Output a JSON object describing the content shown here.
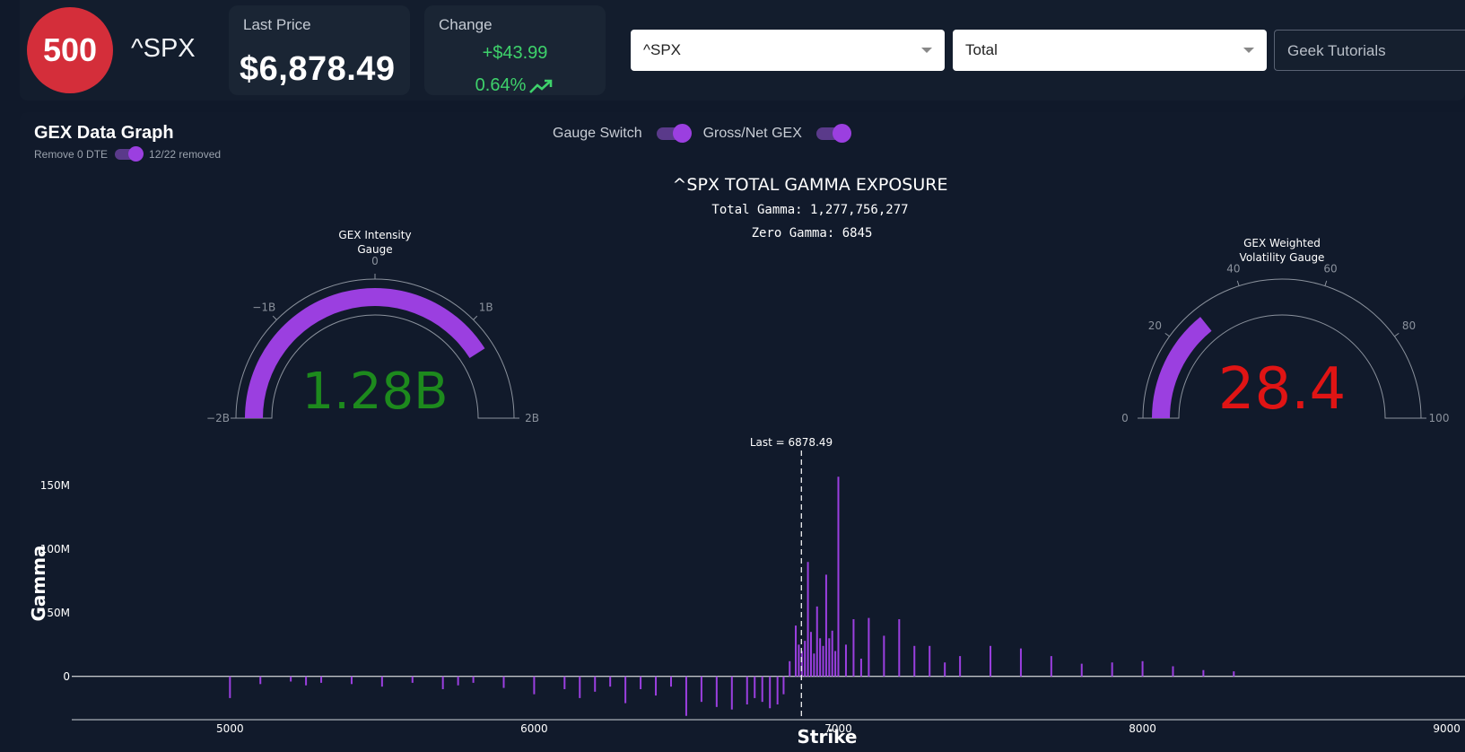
{
  "header": {
    "badge": "500",
    "ticker": "^SPX",
    "last_price_label": "Last Price",
    "last_price_value": "$6,878.49",
    "change_label": "Change",
    "change_amount": "+$43.99",
    "change_percent": "0.64%",
    "trend_icon": "trending-up-icon",
    "select_symbol": "^SPX",
    "select_mode": "Total",
    "tutorials": "Geek Tutorials",
    "accent_green": "#3ed26b",
    "badge_color": "#d42e3a"
  },
  "panel": {
    "title": "GEX Data Graph",
    "remove_dte_label": "Remove 0 DTE",
    "removed_text": "12/22 removed",
    "gauge_switch_label": "Gauge Switch",
    "gross_net_label": "Gross/Net GEX",
    "toggle_color": "#9b3fe0"
  },
  "chart_data": {
    "type": "bar",
    "title": "^SPX TOTAL GAMMA EXPOSURE",
    "subtitle_total": "Total Gamma: 1,277,756,277",
    "subtitle_zero": "Zero Gamma: 6845",
    "xlabel": "Strike",
    "ylabel": "Gamma",
    "xlim": [
      4480,
      9060
    ],
    "ylim": [
      -34000000,
      160000000
    ],
    "x_ticks": [
      5000,
      6000,
      7000,
      8000,
      9000
    ],
    "x_tick_labels": [
      "5000",
      "6000",
      "7000",
      "8000",
      "9000"
    ],
    "y_ticks": [
      0,
      50000000,
      100000000,
      150000000
    ],
    "y_tick_labels": [
      "0",
      "50M",
      "100M",
      "150M"
    ],
    "last_price": 6878.49,
    "last_label": "Last = 6878.49",
    "bar_color": "#9b3fe0",
    "bars": {
      "x": [
        5000,
        5100,
        5200,
        5250,
        5300,
        5400,
        5500,
        5600,
        5700,
        5750,
        5800,
        5900,
        6000,
        6100,
        6150,
        6200,
        6250,
        6300,
        6350,
        6400,
        6450,
        6500,
        6550,
        6600,
        6650,
        6700,
        6725,
        6750,
        6775,
        6800,
        6820,
        6840,
        6860,
        6870,
        6880,
        6890,
        6900,
        6910,
        6920,
        6930,
        6940,
        6950,
        6960,
        6970,
        6980,
        6990,
        7000,
        7025,
        7050,
        7075,
        7100,
        7150,
        7200,
        7250,
        7300,
        7350,
        7400,
        7500,
        7600,
        7700,
        7800,
        7900,
        8000,
        8100,
        8200,
        8300
      ],
      "y": [
        -17000000,
        -6000000,
        -4000000,
        -7000000,
        -5000000,
        -6000000,
        -8000000,
        -5000000,
        -10000000,
        -7000000,
        -5000000,
        -9000000,
        -14000000,
        -10000000,
        -17000000,
        -12000000,
        -8000000,
        -21000000,
        -10000000,
        -15000000,
        -8000000,
        -31000000,
        -20000000,
        -24000000,
        -26000000,
        -22000000,
        -17000000,
        -20000000,
        -25000000,
        -22000000,
        -14000000,
        12000000,
        40000000,
        25000000,
        20000000,
        28000000,
        90000000,
        35000000,
        18000000,
        55000000,
        30000000,
        24000000,
        80000000,
        30000000,
        36000000,
        20000000,
        157000000,
        25000000,
        45000000,
        14000000,
        46000000,
        32000000,
        45000000,
        24000000,
        24000000,
        11000000,
        16000000,
        24000000,
        22000000,
        16000000,
        10000000,
        11000000,
        12000000,
        8000000,
        5000000,
        4000000
      ]
    },
    "gauges": [
      {
        "title_line1": "GEX Intensity",
        "title_line2": "Gauge",
        "value": 1.28,
        "value_label": "1.28B",
        "range": [
          -2,
          2
        ],
        "ticks": [
          -2,
          -1,
          0,
          1,
          2
        ],
        "tick_labels": [
          "−2B",
          "−1B",
          "0",
          "1B",
          "2B"
        ],
        "value_color": "#1d8a1d"
      },
      {
        "title_line1": "GEX Weighted",
        "title_line2": "Volatility Gauge",
        "value": 28.4,
        "value_label": "28.4",
        "range": [
          0,
          100
        ],
        "ticks": [
          0,
          20,
          40,
          60,
          80,
          100
        ],
        "tick_labels": [
          "0",
          "20",
          "40",
          "60",
          "80",
          "100"
        ],
        "value_color": "#e01414"
      }
    ]
  }
}
